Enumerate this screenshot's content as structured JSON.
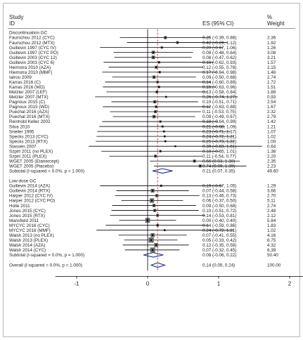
{
  "chart_data": {
    "type": "forest",
    "headers": {
      "study": "Study",
      "id": "ID",
      "es": "ES (95% CI)",
      "pct": "%",
      "weight": "Weight"
    },
    "xaxis": {
      "ticks": [
        -1,
        0,
        1,
        2
      ],
      "tick_labels": [
        "-1",
        "0",
        "1",
        "2"
      ],
      "range": [
        -1.3,
        2.2
      ],
      "reference_line": 0,
      "overall_line": 0.14
    },
    "groups": [
      {
        "name": "Discontinuation GC",
        "rows": [
          {
            "study": "Faurschou 2012 (CYC)",
            "es": 0.25,
            "lo": -0.39,
            "hi": 0.88,
            "es_text": "0.25 (-0.39, 0.88)",
            "weight": "2.36"
          },
          {
            "study": "Faurschou 2012 (MTX)",
            "es": 0.42,
            "lo": -0.29,
            "hi": 1.12,
            "es_text": "0.42 (-0.29, 1.12)",
            "weight": "1.92"
          },
          {
            "study": "Guillevin 1997 (CYC IV)",
            "es": 0.2,
            "lo": -0.67,
            "hi": 1.06,
            "es_text": "0.20 (-0.67, 1.06)",
            "weight": "1.26"
          },
          {
            "study": "Guillevin 1997 (CYC PO)",
            "es": 0.08,
            "lo": -0.48,
            "hi": 0.64,
            "es_text": "0.08 (-0.48, 0.64)",
            "weight": "3.08"
          },
          {
            "study": "Guillevin 2003 (CYC 12)",
            "es": 0.08,
            "lo": -0.47,
            "hi": 0.62,
            "es_text": "0.08 (-0.47, 0.62)",
            "weight": "3.21"
          },
          {
            "study": "Guillevin 2003 (CYC 6)",
            "es": 0.16,
            "lo": -0.62,
            "hi": 0.93,
            "es_text": "0.16 (-0.62, 0.93)",
            "weight": "1.57"
          },
          {
            "study": "Heimstra 2010 (AZA)",
            "es": 0.12,
            "lo": -0.55,
            "hi": 0.78,
            "es_text": "0.12 (-0.55, 0.78)",
            "weight": "2.15"
          },
          {
            "study": "Hiemstra 2010 (MMF)",
            "es": 0.17,
            "lo": -0.64,
            "hi": 0.98,
            "es_text": "0.17 (-0.64, 0.98)",
            "weight": "1.46"
          },
          {
            "study": "Iatrou 2009",
            "es": 0.09,
            "lo": -0.5,
            "hi": 0.68,
            "es_text": "0.09 (-0.50, 0.68)",
            "weight": "2.74"
          },
          {
            "study": "Karras 2016 (C)",
            "es": 0.14,
            "lo": -0.6,
            "hi": 0.89,
            "es_text": "0.14 (-0.60, 0.89)",
            "weight": "1.72"
          },
          {
            "study": "Karras 2016 (WD)",
            "es": 0.16,
            "lo": -0.63,
            "hi": 0.96,
            "es_text": "0.16 (-0.63, 0.96)",
            "weight": "1.51"
          },
          {
            "study": "Metzler 2007 (LEF)",
            "es": 0.13,
            "lo": -0.58,
            "hi": 0.84,
            "es_text": "0.13 (-0.58, 0.84)",
            "weight": "1.88"
          },
          {
            "study": "Metzler 2007 (MTX)",
            "es": 0.26,
            "lo": -0.74,
            "hi": 1.27,
            "es_text": "0.26 (-0.74, 1.27)",
            "weight": "0.93"
          },
          {
            "study": "Pagnoux 2015 (C)",
            "es": 0.1,
            "lo": -0.51,
            "hi": 0.71,
            "es_text": "0.10 (-0.51, 0.71)",
            "weight": "2.54"
          },
          {
            "study": "Pagnoux 2015 (WD)",
            "es": 0.12,
            "lo": -0.63,
            "hi": 0.88,
            "es_text": "0.12 (-0.63, 0.88)",
            "weight": "1.67"
          },
          {
            "study": "Puechal 2016 (AZA)",
            "es": 0.11,
            "lo": -0.53,
            "hi": 0.75,
            "es_text": "0.11 (-0.53, 0.75)",
            "weight": "2.32"
          },
          {
            "study": "Puechal 2016 (MTX)",
            "es": 0.09,
            "lo": -0.49,
            "hi": 0.67,
            "es_text": "0.09 (-0.49, 0.67)",
            "weight": "2.79"
          },
          {
            "study": "Reinhold Keller 2002",
            "es": 0.18,
            "lo": -0.64,
            "hi": 0.99,
            "es_text": "0.18 (-0.64, 0.99)",
            "weight": "1.42"
          },
          {
            "study": "Silva 2010",
            "es": 0.21,
            "lo": -0.68,
            "hi": 1.09,
            "es_text": "0.21 (-0.68, 1.09)",
            "weight": "1.21"
          },
          {
            "study": "Sneller 1995",
            "es": 0.23,
            "lo": -0.71,
            "hi": 1.17,
            "es_text": "0.23 (-0.71, 1.17)",
            "weight": "1.07"
          },
          {
            "study": "Specks 2013 (CYC)",
            "es": 0.24,
            "lo": -0.72,
            "hi": 1.21,
            "es_text": "0.24 (-0.72, 1.21)",
            "weight": "1.02"
          },
          {
            "study": "Specks 2013 (RTX)",
            "es": 0.25,
            "lo": -0.73,
            "hi": 1.22,
            "es_text": "0.25 (-0.73, 1.22)",
            "weight": "1.00"
          },
          {
            "study": "Stassen 2007",
            "es": 0.39,
            "lo": -0.83,
            "hi": 1.61,
            "es_text": "0.39 (-0.83, 1.61)",
            "weight": "0.64"
          },
          {
            "study": "Szpirt 2011 (no PLEX)",
            "es": 0.18,
            "lo": -0.65,
            "hi": 1.01,
            "es_text": "0.18 (-0.65, 1.01)",
            "weight": "1.38"
          },
          {
            "study": "Szpirt 2011 (PLEX)",
            "es": 0.11,
            "lo": -0.54,
            "hi": 0.77,
            "es_text": "0.11 (-0.54, 0.77)",
            "weight": "2.20"
          },
          {
            "study": "WGET 2005 (Etanercept)",
            "es": 0.66,
            "lo": 0.03,
            "hi": 1.3,
            "es_text": "0.66 (0.03, 1.30)",
            "weight": "2.35"
          },
          {
            "study": "WGET 2005 (Placebo)",
            "es": 0.74,
            "lo": 0.09,
            "hi": 1.39,
            "es_text": "0.74 (0.09, 1.39)",
            "weight": "2.23"
          }
        ],
        "subtotal": {
          "label": "Subtotal  (I-squared = 0.0%, p = 1.000)",
          "es": 0.21,
          "lo": 0.07,
          "hi": 0.35,
          "es_text": "0.21 (0.07, 0.35)",
          "weight": "49.60"
        }
      },
      {
        "name": "Low-dose GC",
        "rows": [
          {
            "study": "Guillevin 2014 (AZA)",
            "es": 0.19,
            "lo": -0.67,
            "hi": 1.05,
            "es_text": "0.19 (-0.67, 1.05)",
            "weight": "1.29"
          },
          {
            "study": "Guillevin 2014 (RTX)",
            "es": 0.07,
            "lo": -0.44,
            "hi": 0.58,
            "es_text": "0.07 (-0.44, 0.58)",
            "weight": "3.66"
          },
          {
            "study": "Harper 2012 (CYC IV)",
            "es": 0.13,
            "lo": -0.46,
            "hi": 0.73,
            "es_text": "0.13 (-0.46, 0.73)",
            "weight": "2.70"
          },
          {
            "study": "Harper 2012 (CYC PO)",
            "es": 0.06,
            "lo": -0.37,
            "hi": 0.5,
            "es_text": "0.06 (-0.37, 0.50)",
            "weight": "5.11"
          },
          {
            "study": "Holle 2011",
            "es": 0.09,
            "lo": -0.5,
            "hi": 0.68,
            "es_text": "0.09 (-0.50, 0.68)",
            "weight": "2.74"
          },
          {
            "study": "Jones 2015 (CYC)",
            "es": 0.1,
            "lo": -0.51,
            "hi": 0.72,
            "es_text": "0.10 (-0.51, 0.72)",
            "weight": "2.48"
          },
          {
            "study": "Jones 2015 (RTX)",
            "es": 0.14,
            "lo": -0.53,
            "hi": 0.81,
            "es_text": "0.14 (-0.53, 0.81)",
            "weight": "2.12"
          },
          {
            "study": "Mansfield 2011",
            "es": 0.0,
            "lo": -0.4,
            "hi": 0.4,
            "es_text": "0.00 (-0.40, 0.40)",
            "weight": "5.84"
          },
          {
            "study": "MYCYC 2016 (CYC)",
            "es": 0.14,
            "lo": -0.59,
            "hi": 0.86,
            "es_text": "0.14 (-0.59, 0.86)",
            "weight": "1.83"
          },
          {
            "study": "MYCYC 2016 (MMF)",
            "es": 0.24,
            "lo": -0.72,
            "hi": 1.21,
            "es_text": "0.24 (-0.72, 1.21)",
            "weight": "1.02"
          },
          {
            "study": "Walsh 2013 (no PLEX)",
            "es": 0.07,
            "lo": -0.41,
            "hi": 0.55,
            "es_text": "0.07 (-0.41, 0.55)",
            "weight": "4.16"
          },
          {
            "study": "Walsh 2013 (PLEX)",
            "es": 0.05,
            "lo": -0.33,
            "hi": 0.42,
            "es_text": "0.05 (-0.33, 0.42)",
            "weight": "6.75"
          },
          {
            "study": "Walsh 2014 (AZA)",
            "es": 0.12,
            "lo": -0.35,
            "hi": 0.58,
            "es_text": "0.12 (-0.35, 0.58)",
            "weight": "4.32"
          },
          {
            "study": "Walsh 2014 (CYC)",
            "es": 0.07,
            "lo": -0.32,
            "hi": 0.45,
            "es_text": "0.07 (-0.32, 0.45)",
            "weight": "6.39"
          }
        ],
        "subtotal": {
          "label": "Subtotal  (I-squared = 0.0%, p = 1.000)",
          "es": 0.08,
          "lo": -0.06,
          "hi": 0.22,
          "es_text": "0.08 (-0.06, 0.22)",
          "weight": "50.40"
        }
      }
    ],
    "overall": {
      "label": "Overall  (I-squared = 0.0%, p = 1.000)",
      "es": 0.14,
      "lo": 0.05,
      "hi": 0.24,
      "es_text": "0.14 (0.05, 0.24)",
      "weight": "100.00"
    }
  }
}
